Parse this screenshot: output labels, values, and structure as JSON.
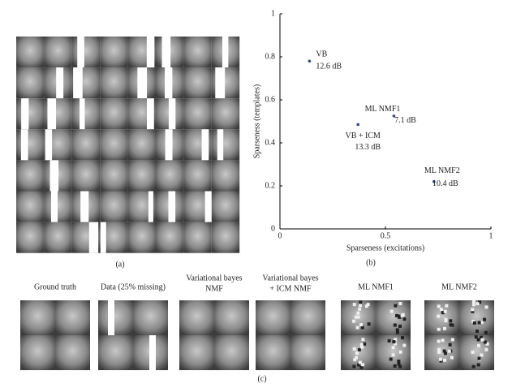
{
  "chart_data": {
    "type": "scatter",
    "panel_label": "(b)",
    "xlabel": "Sparseness (excitations)",
    "ylabel": "Sparseness (templates)",
    "x": [
      0.14,
      0.37,
      0.54,
      0.73
    ],
    "values": [
      0.78,
      0.485,
      0.525,
      0.22
    ],
    "point_labels": [
      "VB",
      "VB + ICM",
      "ML NMF1",
      "ML NMF2"
    ],
    "point_annotations": [
      "12.6 dB",
      "13.3 dB",
      "7.1 dB",
      "10.4 dB"
    ],
    "color": "#2b4a9a",
    "xlim": [
      0,
      1
    ],
    "ylim": [
      0,
      1
    ],
    "xticks": [
      0,
      0.5,
      1
    ],
    "yticks": [
      0,
      0.2,
      0.4,
      0.6,
      0.8,
      1
    ]
  },
  "panel_a": {
    "label": "(a)"
  },
  "panel_c": {
    "label": "(c)",
    "captions": [
      [
        "Ground truth"
      ],
      [
        "Data (25% missing)"
      ],
      [
        "Variational bayes",
        "NMF"
      ],
      [
        "Variational bayes",
        "+ ICM NMF"
      ],
      [
        "ML NMF1"
      ],
      [
        "ML NMF2"
      ]
    ]
  }
}
